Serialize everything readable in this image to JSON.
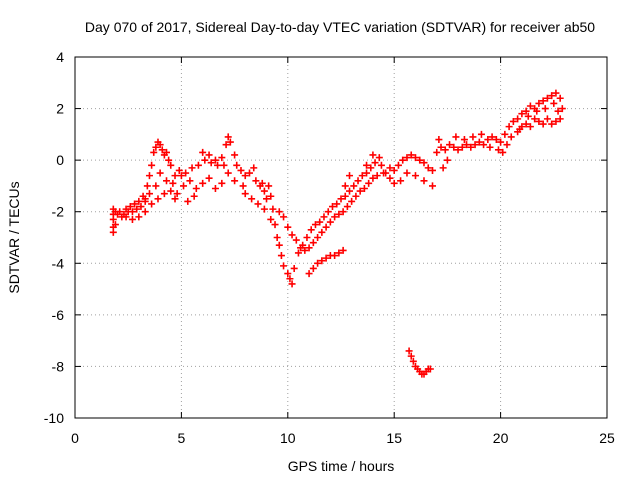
{
  "chart_data": {
    "type": "scatter",
    "title": "Day 070 of 2017, Sidereal Day-to-day VTEC variation (SDTVAR) for receiver ab50",
    "xlabel": "GPS time / hours",
    "ylabel": "SDTVAR / TECUs",
    "xlim": [
      0,
      25
    ],
    "ylim": [
      -10,
      4
    ],
    "xticks": [
      0,
      5,
      10,
      15,
      20,
      25
    ],
    "yticks": [
      -10,
      -8,
      -6,
      -4,
      -2,
      0,
      2,
      4
    ],
    "xtick_labels": [
      "0",
      "5",
      "10",
      "15",
      "20",
      "25"
    ],
    "ytick_labels": [
      "-10",
      "-8",
      "-6",
      "-4",
      "-2",
      "0",
      "2",
      "4"
    ],
    "grid": true,
    "marker": "+",
    "series": [
      {
        "name": "SDTVAR",
        "color": "#ff0000",
        "points": [
          [
            1.8,
            -1.9
          ],
          [
            1.8,
            -2.1
          ],
          [
            1.8,
            -2.3
          ],
          [
            1.8,
            -2.6
          ],
          [
            1.8,
            -2.8
          ],
          [
            1.9,
            -2.0
          ],
          [
            1.9,
            -2.5
          ],
          [
            2.0,
            -2.1
          ],
          [
            2.1,
            -2.0
          ],
          [
            2.2,
            -2.2
          ],
          [
            2.3,
            -2.1
          ],
          [
            2.4,
            -1.9
          ],
          [
            2.5,
            -2.0
          ],
          [
            2.6,
            -1.8
          ],
          [
            2.7,
            -2.0
          ],
          [
            2.8,
            -1.7
          ],
          [
            2.9,
            -1.9
          ],
          [
            3.0,
            -1.6
          ],
          [
            3.1,
            -1.8
          ],
          [
            3.2,
            -1.4
          ],
          [
            3.3,
            -1.6
          ],
          [
            3.4,
            -1.0
          ],
          [
            3.5,
            -0.6
          ],
          [
            3.6,
            -0.2
          ],
          [
            3.7,
            0.3
          ],
          [
            3.8,
            0.5
          ],
          [
            3.9,
            0.7
          ],
          [
            4.0,
            0.6
          ],
          [
            4.1,
            0.4
          ],
          [
            4.2,
            0.2
          ],
          [
            4.3,
            0.3
          ],
          [
            4.4,
            0.0
          ],
          [
            4.5,
            -0.2
          ],
          [
            4.3,
            -0.8
          ],
          [
            4.5,
            -1.2
          ],
          [
            4.7,
            -1.5
          ],
          [
            4.8,
            -1.3
          ],
          [
            3.3,
            -2.0
          ],
          [
            3.6,
            -1.7
          ],
          [
            3.9,
            -1.5
          ],
          [
            4.2,
            -1.3
          ],
          [
            4.6,
            -0.9
          ],
          [
            5.0,
            -0.6
          ],
          [
            5.2,
            -0.5
          ],
          [
            5.5,
            -0.3
          ],
          [
            5.8,
            -0.2
          ],
          [
            6.1,
            0.0
          ],
          [
            6.4,
            -0.1
          ],
          [
            6.7,
            -0.2
          ],
          [
            6.9,
            0.1
          ],
          [
            7.1,
            0.6
          ],
          [
            7.2,
            0.9
          ],
          [
            7.3,
            0.7
          ],
          [
            7.5,
            0.2
          ],
          [
            7.6,
            -0.2
          ],
          [
            7.8,
            -0.4
          ],
          [
            8.0,
            -0.6
          ],
          [
            8.2,
            -0.5
          ],
          [
            8.4,
            -0.3
          ],
          [
            8.5,
            -0.8
          ],
          [
            8.7,
            -1.0
          ],
          [
            8.9,
            -1.2
          ],
          [
            9.1,
            -1.0
          ],
          [
            9.2,
            -1.4
          ],
          [
            9.3,
            -1.9
          ],
          [
            9.4,
            -2.5
          ],
          [
            9.5,
            -3.0
          ],
          [
            9.6,
            -3.3
          ],
          [
            9.7,
            -3.7
          ],
          [
            9.8,
            -4.1
          ],
          [
            10.0,
            -4.4
          ],
          [
            10.1,
            -4.6
          ],
          [
            10.2,
            -4.8
          ],
          [
            10.3,
            -4.2
          ],
          [
            10.5,
            -3.6
          ],
          [
            10.7,
            -3.3
          ],
          [
            10.9,
            -3.0
          ],
          [
            11.1,
            -2.7
          ],
          [
            11.3,
            -2.5
          ],
          [
            11.5,
            -2.4
          ],
          [
            11.7,
            -2.2
          ],
          [
            11.9,
            -2.0
          ],
          [
            12.1,
            -1.8
          ],
          [
            12.3,
            -1.7
          ],
          [
            12.5,
            -1.5
          ],
          [
            12.7,
            -1.4
          ],
          [
            12.9,
            -1.2
          ],
          [
            13.1,
            -1.0
          ],
          [
            13.3,
            -0.8
          ],
          [
            13.5,
            -0.6
          ],
          [
            13.7,
            -0.5
          ],
          [
            13.9,
            -0.3
          ],
          [
            14.1,
            -0.1
          ],
          [
            14.3,
            0.1
          ],
          [
            14.4,
            -0.2
          ],
          [
            14.6,
            -0.5
          ],
          [
            14.8,
            -0.3
          ],
          [
            15.0,
            -0.4
          ],
          [
            15.2,
            -0.2
          ],
          [
            15.4,
            0.0
          ],
          [
            15.6,
            0.1
          ],
          [
            15.8,
            0.2
          ],
          [
            16.0,
            0.1
          ],
          [
            16.2,
            0.0
          ],
          [
            16.4,
            -0.1
          ],
          [
            16.6,
            -0.3
          ],
          [
            16.8,
            -0.4
          ],
          [
            17.0,
            0.3
          ],
          [
            17.2,
            0.5
          ],
          [
            17.4,
            0.4
          ],
          [
            17.6,
            0.6
          ],
          [
            17.8,
            0.5
          ],
          [
            18.0,
            0.4
          ],
          [
            18.2,
            0.5
          ],
          [
            18.4,
            0.6
          ],
          [
            18.6,
            0.5
          ],
          [
            18.8,
            0.6
          ],
          [
            19.0,
            0.7
          ],
          [
            19.2,
            0.6
          ],
          [
            19.4,
            0.8
          ],
          [
            19.6,
            0.9
          ],
          [
            19.8,
            0.8
          ],
          [
            20.0,
            0.7
          ],
          [
            20.2,
            1.0
          ],
          [
            20.4,
            1.3
          ],
          [
            20.6,
            1.5
          ],
          [
            20.8,
            1.6
          ],
          [
            21.0,
            1.8
          ],
          [
            21.2,
            1.9
          ],
          [
            21.4,
            2.1
          ],
          [
            21.6,
            2.0
          ],
          [
            21.8,
            2.2
          ],
          [
            22.0,
            2.3
          ],
          [
            22.2,
            2.4
          ],
          [
            22.4,
            2.5
          ],
          [
            22.6,
            2.6
          ],
          [
            22.8,
            2.4
          ],
          [
            22.9,
            2.0
          ],
          [
            22.8,
            1.6
          ],
          [
            22.6,
            1.5
          ],
          [
            22.4,
            1.4
          ],
          [
            22.2,
            1.6
          ],
          [
            22.0,
            1.4
          ],
          [
            21.8,
            1.5
          ],
          [
            21.6,
            1.6
          ],
          [
            21.4,
            1.3
          ],
          [
            21.2,
            1.4
          ],
          [
            21.0,
            1.3
          ],
          [
            20.8,
            1.1
          ],
          [
            11.0,
            -4.4
          ],
          [
            11.2,
            -4.2
          ],
          [
            11.4,
            -4.0
          ],
          [
            11.6,
            -3.9
          ],
          [
            11.8,
            -3.8
          ],
          [
            12.0,
            -3.7
          ],
          [
            12.2,
            -3.7
          ],
          [
            12.4,
            -3.6
          ],
          [
            12.6,
            -3.5
          ],
          [
            15.7,
            -7.4
          ],
          [
            15.8,
            -7.6
          ],
          [
            15.9,
            -7.8
          ],
          [
            16.0,
            -8.0
          ],
          [
            16.1,
            -8.1
          ],
          [
            16.2,
            -8.2
          ],
          [
            16.3,
            -8.3
          ],
          [
            16.4,
            -8.3
          ],
          [
            16.5,
            -8.2
          ],
          [
            16.6,
            -8.1
          ],
          [
            16.7,
            -8.1
          ],
          [
            9.6,
            -2.0
          ],
          [
            9.8,
            -2.2
          ],
          [
            10.0,
            -2.6
          ],
          [
            10.2,
            -2.9
          ],
          [
            10.4,
            -3.1
          ],
          [
            10.6,
            -3.4
          ],
          [
            10.8,
            -3.5
          ],
          [
            11.0,
            -3.4
          ],
          [
            11.2,
            -3.2
          ],
          [
            11.4,
            -3.0
          ],
          [
            11.6,
            -2.8
          ],
          [
            11.8,
            -2.6
          ],
          [
            12.0,
            -2.4
          ],
          [
            12.2,
            -2.2
          ],
          [
            12.4,
            -2.1
          ],
          [
            12.6,
            -2.0
          ],
          [
            12.8,
            -1.8
          ],
          [
            13.0,
            -1.6
          ],
          [
            13.2,
            -1.4
          ],
          [
            13.4,
            -1.2
          ],
          [
            13.6,
            -1.1
          ],
          [
            13.8,
            -0.9
          ],
          [
            14.0,
            -0.7
          ],
          [
            14.2,
            -0.6
          ],
          [
            14.5,
            -0.5
          ],
          [
            14.8,
            -0.7
          ],
          [
            15.0,
            -0.9
          ],
          [
            15.3,
            -0.8
          ],
          [
            15.6,
            -0.5
          ],
          [
            16.0,
            -0.6
          ],
          [
            16.4,
            -0.8
          ],
          [
            16.8,
            -1.0
          ],
          [
            8.0,
            -1.3
          ],
          [
            8.3,
            -1.5
          ],
          [
            8.6,
            -1.7
          ],
          [
            8.9,
            -1.9
          ],
          [
            9.2,
            -2.3
          ],
          [
            9.0,
            -1.5
          ],
          [
            8.8,
            -0.9
          ],
          [
            7.9,
            -1.0
          ],
          [
            7.5,
            -0.8
          ],
          [
            7.2,
            -0.5
          ],
          [
            6.9,
            -0.9
          ],
          [
            6.6,
            -1.1
          ],
          [
            6.3,
            -0.7
          ],
          [
            6.0,
            -0.9
          ],
          [
            5.7,
            -1.1
          ],
          [
            5.4,
            -0.8
          ],
          [
            5.1,
            -1.0
          ],
          [
            4.9,
            -0.4
          ],
          [
            4.7,
            -0.6
          ],
          [
            6.0,
            0.3
          ],
          [
            6.3,
            0.2
          ],
          [
            6.6,
            0.0
          ],
          [
            7.0,
            -0.2
          ],
          [
            4.0,
            -0.5
          ],
          [
            3.8,
            -1.0
          ],
          [
            3.5,
            -1.3
          ],
          [
            3.3,
            -1.5
          ],
          [
            3.0,
            -2.2
          ],
          [
            2.7,
            -2.3
          ],
          [
            2.4,
            -2.2
          ],
          [
            5.3,
            -1.6
          ],
          [
            5.6,
            -1.4
          ],
          [
            17.5,
            0.0
          ],
          [
            17.3,
            -0.3
          ],
          [
            17.1,
            0.8
          ],
          [
            17.9,
            0.9
          ],
          [
            18.3,
            0.8
          ],
          [
            18.7,
            0.9
          ],
          [
            19.1,
            1.0
          ],
          [
            19.5,
            0.5
          ],
          [
            19.9,
            0.4
          ],
          [
            20.3,
            0.6
          ],
          [
            20.1,
            0.3
          ],
          [
            20.5,
            0.9
          ],
          [
            20.9,
            1.2
          ],
          [
            21.3,
            1.7
          ],
          [
            21.7,
            1.9
          ],
          [
            22.1,
            2.0
          ],
          [
            22.5,
            2.2
          ],
          [
            22.7,
            1.9
          ],
          [
            14.0,
            0.2
          ],
          [
            13.7,
            -0.2
          ],
          [
            12.9,
            -0.6
          ],
          [
            12.7,
            -1.0
          ]
        ]
      }
    ]
  }
}
